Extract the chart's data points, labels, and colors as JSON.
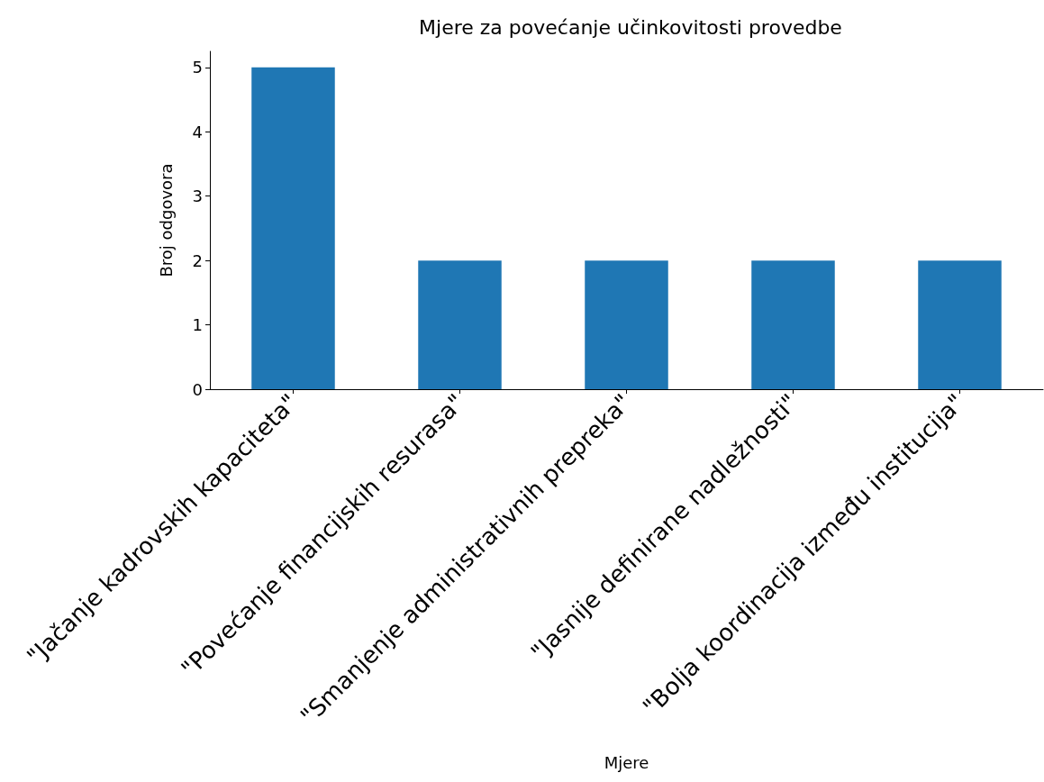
{
  "chart_data": {
    "type": "bar",
    "title": "Mjere za povećanje učinkovitosti provedbe",
    "xlabel": "Mjere",
    "ylabel": "Broj odgovora",
    "categories": [
      "\"Jačanje kadrovskih kapaciteta\"",
      "\"Povećanje financijskih resurasa\"",
      "\"Smanjenje administrativnih prepreka\"",
      "\"Jasnije definirane nadležnosti\"",
      "\"Bolja koordinacija između institucija\""
    ],
    "values": [
      5,
      2,
      2,
      2,
      2
    ],
    "color": "#1f77b4",
    "ylim": [
      0,
      5.25
    ],
    "yticks": [
      0,
      1,
      2,
      3,
      4,
      5
    ],
    "grid": false
  }
}
